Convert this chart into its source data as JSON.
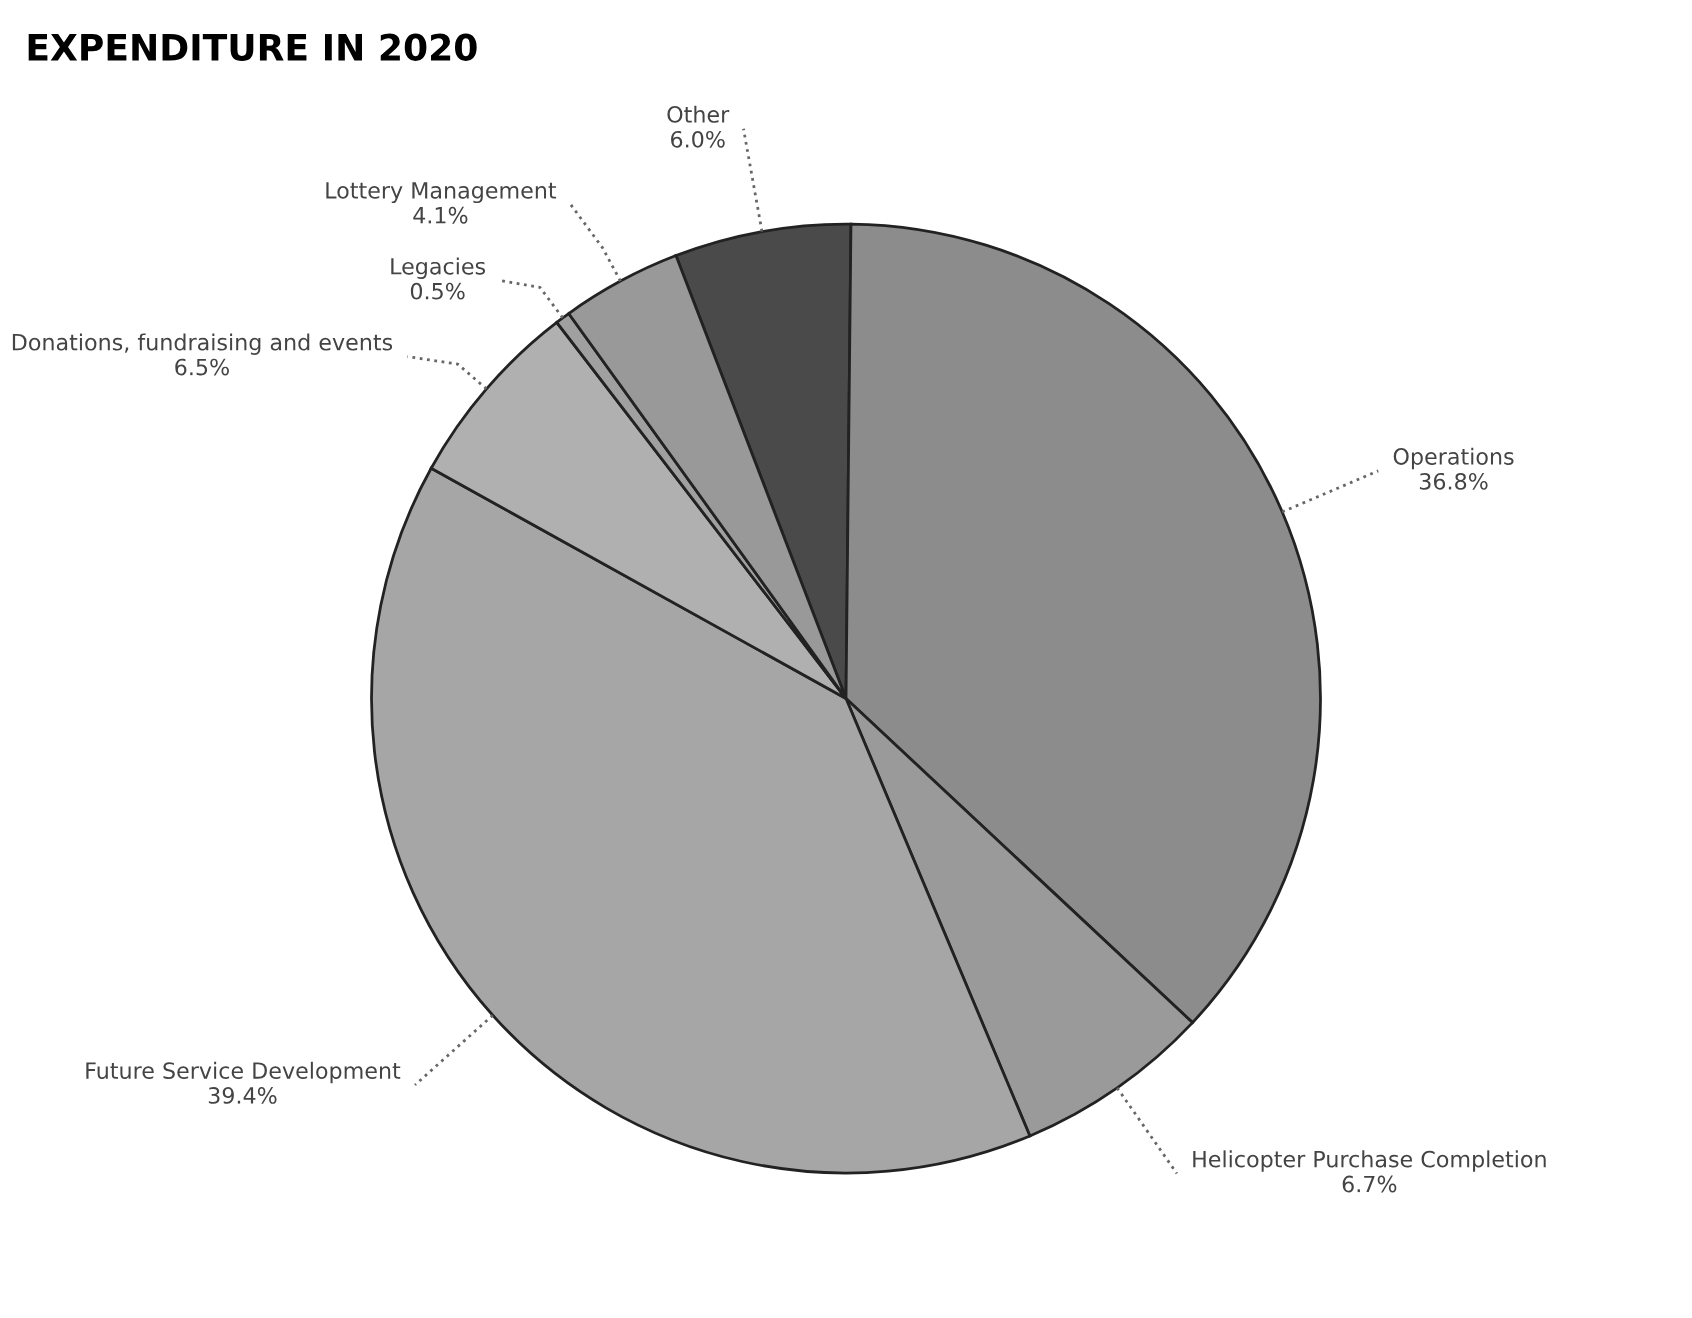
{
  "chart_data": {
    "type": "pie",
    "title": "EXPENDITURE IN 2020",
    "categories": [
      "Other",
      "Operations",
      "Helicopter Purchase Completion",
      "Future Service Development",
      "Donations, fundraising and events",
      "Legacies",
      "Lottery Management"
    ],
    "values": [
      6.0,
      36.8,
      6.7,
      39.4,
      6.5,
      0.5,
      4.1
    ],
    "value_labels": [
      "6.0%",
      "36.8%",
      "6.7%",
      "39.4%",
      "6.5%",
      "0.5%",
      "4.1%"
    ],
    "colors": [
      "#4a4a4a",
      "#8c8c8c",
      "#9a9a9a",
      "#a6a6a6",
      "#b0b0b0",
      "#a0a0a0",
      "#999999"
    ]
  }
}
